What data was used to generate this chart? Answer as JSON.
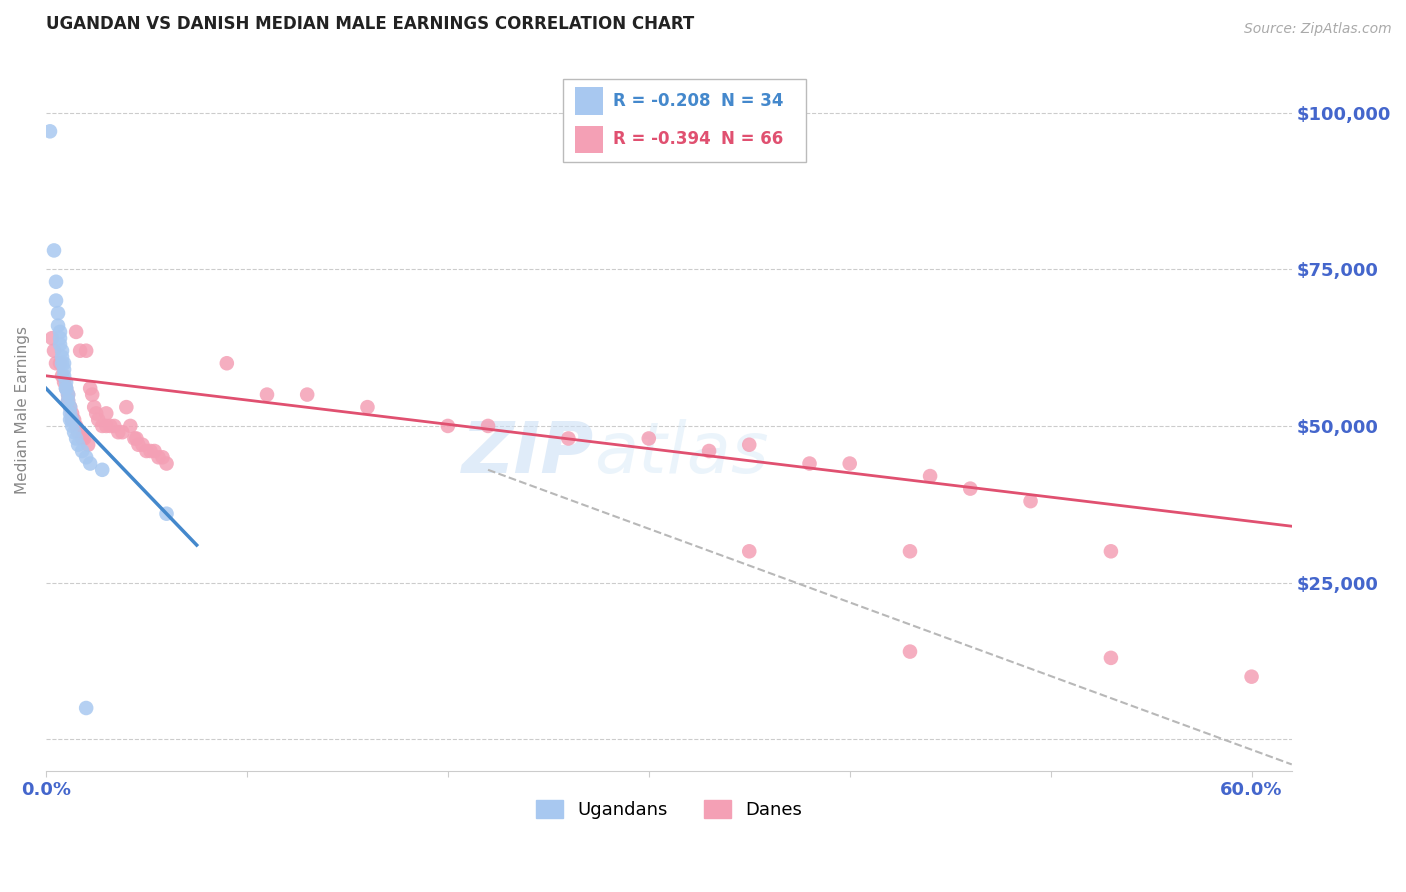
{
  "title": "UGANDAN VS DANISH MEDIAN MALE EARNINGS CORRELATION CHART",
  "source": "Source: ZipAtlas.com",
  "ylabel": "Median Male Earnings",
  "watermark_part1": "ZIP",
  "watermark_part2": "atlas",
  "xlim": [
    0.0,
    0.62
  ],
  "ylim": [
    -5000,
    110000
  ],
  "yticks": [
    0,
    25000,
    50000,
    75000,
    100000
  ],
  "ytick_labels": [
    "",
    "$25,000",
    "$50,000",
    "$75,000",
    "$100,000"
  ],
  "xticks": [
    0.0,
    0.1,
    0.2,
    0.3,
    0.4,
    0.5,
    0.6
  ],
  "xtick_labels": [
    "0.0%",
    "",
    "",
    "",
    "",
    "",
    "60.0%"
  ],
  "ugandan_color": "#a8c8f0",
  "danish_color": "#f4a0b5",
  "trend_ugandan_color": "#4488cc",
  "trend_danish_color": "#e05070",
  "trend_dashed_color": "#b8b8b8",
  "title_color": "#222222",
  "ytick_color": "#4466cc",
  "xtick_color": "#4466cc",
  "grid_color": "#cccccc",
  "ugandan_points": [
    [
      0.002,
      97000
    ],
    [
      0.004,
      78000
    ],
    [
      0.005,
      73000
    ],
    [
      0.005,
      70000
    ],
    [
      0.006,
      68000
    ],
    [
      0.006,
      66000
    ],
    [
      0.007,
      65000
    ],
    [
      0.007,
      64000
    ],
    [
      0.007,
      63000
    ],
    [
      0.008,
      62000
    ],
    [
      0.008,
      61000
    ],
    [
      0.008,
      60000
    ],
    [
      0.009,
      60000
    ],
    [
      0.009,
      59000
    ],
    [
      0.009,
      58000
    ],
    [
      0.01,
      57000
    ],
    [
      0.01,
      56000
    ],
    [
      0.01,
      56000
    ],
    [
      0.011,
      55000
    ],
    [
      0.011,
      54000
    ],
    [
      0.012,
      53000
    ],
    [
      0.012,
      52000
    ],
    [
      0.012,
      51000
    ],
    [
      0.013,
      51000
    ],
    [
      0.013,
      50000
    ],
    [
      0.014,
      49000
    ],
    [
      0.015,
      48000
    ],
    [
      0.016,
      47000
    ],
    [
      0.018,
      46000
    ],
    [
      0.02,
      45000
    ],
    [
      0.022,
      44000
    ],
    [
      0.028,
      43000
    ],
    [
      0.06,
      36000
    ],
    [
      0.02,
      5000
    ]
  ],
  "danish_points": [
    [
      0.003,
      64000
    ],
    [
      0.004,
      62000
    ],
    [
      0.005,
      60000
    ],
    [
      0.007,
      60000
    ],
    [
      0.008,
      58000
    ],
    [
      0.009,
      57000
    ],
    [
      0.01,
      56000
    ],
    [
      0.011,
      55000
    ],
    [
      0.011,
      54000
    ],
    [
      0.012,
      53000
    ],
    [
      0.013,
      52000
    ],
    [
      0.013,
      51000
    ],
    [
      0.014,
      51000
    ],
    [
      0.015,
      50000
    ],
    [
      0.015,
      65000
    ],
    [
      0.016,
      49000
    ],
    [
      0.017,
      49000
    ],
    [
      0.017,
      62000
    ],
    [
      0.018,
      48000
    ],
    [
      0.019,
      48000
    ],
    [
      0.02,
      62000
    ],
    [
      0.021,
      47000
    ],
    [
      0.022,
      56000
    ],
    [
      0.023,
      55000
    ],
    [
      0.024,
      53000
    ],
    [
      0.025,
      52000
    ],
    [
      0.026,
      51000
    ],
    [
      0.028,
      50000
    ],
    [
      0.03,
      52000
    ],
    [
      0.03,
      50000
    ],
    [
      0.032,
      50000
    ],
    [
      0.034,
      50000
    ],
    [
      0.036,
      49000
    ],
    [
      0.038,
      49000
    ],
    [
      0.04,
      53000
    ],
    [
      0.042,
      50000
    ],
    [
      0.044,
      48000
    ],
    [
      0.045,
      48000
    ],
    [
      0.046,
      47000
    ],
    [
      0.048,
      47000
    ],
    [
      0.05,
      46000
    ],
    [
      0.052,
      46000
    ],
    [
      0.054,
      46000
    ],
    [
      0.056,
      45000
    ],
    [
      0.058,
      45000
    ],
    [
      0.06,
      44000
    ],
    [
      0.09,
      60000
    ],
    [
      0.11,
      55000
    ],
    [
      0.13,
      55000
    ],
    [
      0.16,
      53000
    ],
    [
      0.2,
      50000
    ],
    [
      0.22,
      50000
    ],
    [
      0.26,
      48000
    ],
    [
      0.3,
      48000
    ],
    [
      0.33,
      46000
    ],
    [
      0.35,
      47000
    ],
    [
      0.38,
      44000
    ],
    [
      0.4,
      44000
    ],
    [
      0.44,
      42000
    ],
    [
      0.46,
      40000
    ],
    [
      0.49,
      38000
    ],
    [
      0.35,
      30000
    ],
    [
      0.43,
      30000
    ],
    [
      0.53,
      30000
    ],
    [
      0.43,
      14000
    ],
    [
      0.6,
      10000
    ],
    [
      0.53,
      13000
    ]
  ],
  "ugandan_trend_x": [
    0.0,
    0.075
  ],
  "ugandan_trend_y": [
    56000,
    31000
  ],
  "danish_trend_x": [
    0.0,
    0.62
  ],
  "danish_trend_y": [
    58000,
    34000
  ],
  "dashed_trend_x": [
    0.22,
    0.62
  ],
  "dashed_trend_y": [
    43000,
    -4000
  ]
}
